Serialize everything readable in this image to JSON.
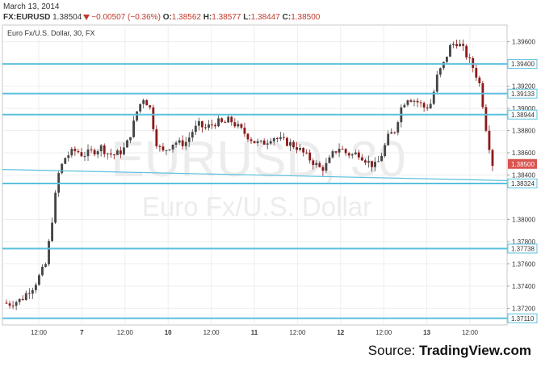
{
  "header": {
    "date": "March 13, 2014",
    "symbol": "FX:EURUSD",
    "last": "1.38504",
    "change": "−0.00507 (−0.36%)",
    "open_label": "O:",
    "open": "1.38562",
    "high_label": "H:",
    "high": "1.38577",
    "low_label": "L:",
    "low": "1.38447",
    "close_label": "C:",
    "close": "1.38500"
  },
  "chart_data": {
    "type": "candlestick",
    "title": "Euro Fx/U.S. Dollar, 30, FX",
    "watermark_symbol": "EURUSD, 30",
    "watermark_name": "Euro Fx/U.S. Dollar",
    "ylim": [
      1.3705,
      1.3975
    ],
    "y_ticks": [
      "1.39600",
      "1.39200",
      "1.39000",
      "1.38800",
      "1.38600",
      "1.38400",
      "1.38000",
      "1.37800",
      "1.37600",
      "1.37400",
      "1.37200"
    ],
    "x_ticks": [
      "12:00",
      "7",
      "12:00",
      "10",
      "12:00",
      "11",
      "12:00",
      "12",
      "12:00",
      "13",
      "12:00"
    ],
    "x_ticks_bold": [
      false,
      true,
      false,
      true,
      false,
      true,
      false,
      true,
      false,
      true,
      false
    ],
    "horizontal_levels": [
      "1.39400",
      "1.39133",
      "1.38944",
      "1.38324",
      "1.37738",
      "1.37110"
    ],
    "trendline": {
      "from": 1.3845,
      "to": 1.3835
    },
    "last_price_label": "1.38500",
    "grid": true,
    "up_color": "#444444",
    "down_color": "#8b1a1a",
    "level_color": "#5bc0de",
    "path": [
      1.3725,
      1.3724,
      1.3726,
      1.3728,
      1.3735,
      1.374,
      1.375,
      1.376,
      1.38,
      1.384,
      1.3855,
      1.386,
      1.3862,
      1.3858,
      1.386,
      1.3862,
      1.3865,
      1.386,
      1.3858,
      1.386,
      1.3865,
      1.388,
      1.39,
      1.391,
      1.39,
      1.387,
      1.386,
      1.3865,
      1.387,
      1.3868,
      1.387,
      1.388,
      1.3885,
      1.3882,
      1.3885,
      1.3888,
      1.3886,
      1.389,
      1.3885,
      1.388,
      1.3875,
      1.387,
      1.3868,
      1.387,
      1.3875,
      1.3872,
      1.387,
      1.3868,
      1.3865,
      1.386,
      1.3855,
      1.385,
      1.3845,
      1.385,
      1.386,
      1.3865,
      1.386,
      1.3858,
      1.386,
      1.3855,
      1.385,
      1.3848,
      1.386,
      1.3875,
      1.388,
      1.39,
      1.391,
      1.3908,
      1.3905,
      1.39,
      1.3905,
      1.393,
      1.394,
      1.3955,
      1.396,
      1.3955,
      1.3945,
      1.3935,
      1.392,
      1.388,
      1.385
    ]
  },
  "source": {
    "prefix": "Source:",
    "brand": "TradingView.com"
  }
}
